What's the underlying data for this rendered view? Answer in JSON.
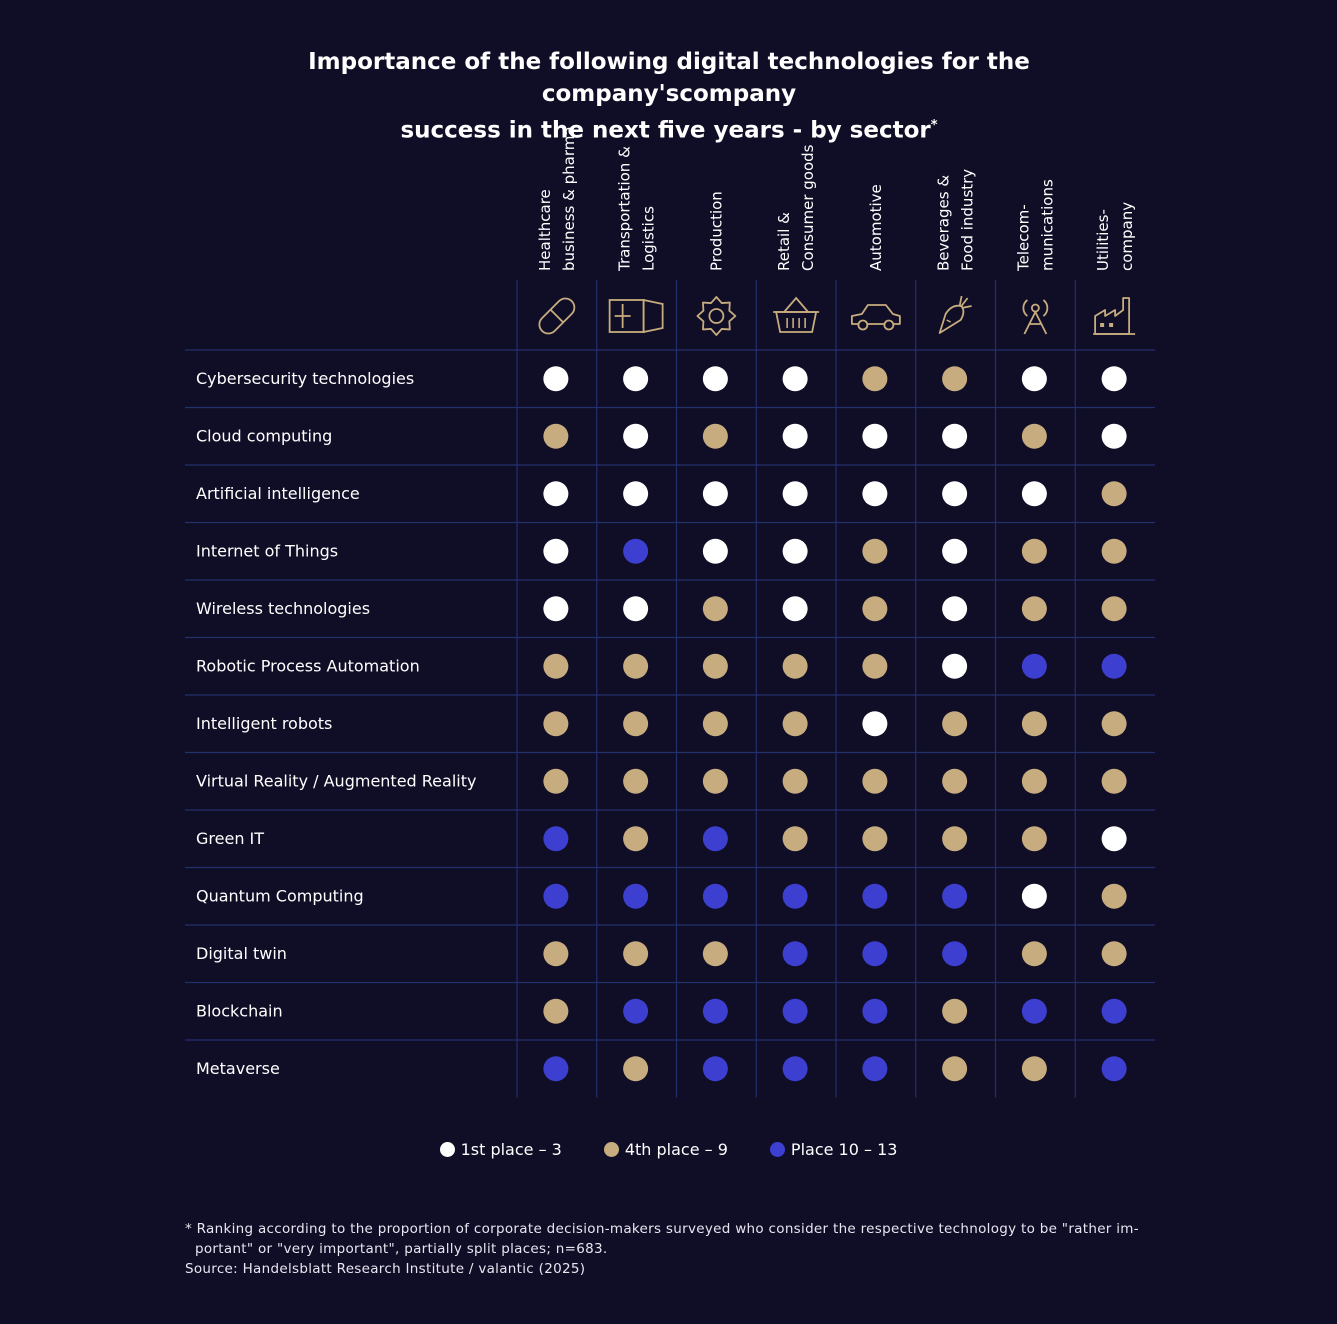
{
  "title": {
    "line1": "Importance of the following digital technologies for the company'scompany",
    "line2": "success in the next five years - by sector",
    "mark": "*"
  },
  "colors": {
    "background": "#100d26",
    "top": "#ffffff",
    "mid": "#c6ac7e",
    "low": "#3d3fd0",
    "gridline": "#23306e"
  },
  "chart_data": {
    "type": "table",
    "sectors": [
      {
        "name": "Healthcare business & pharma",
        "line1": "Healthcare",
        "line2": "business & pharma",
        "icon": "pill-icon"
      },
      {
        "name": "Transportation & Logistics",
        "line1": "Transportation &",
        "line2": "Logistics",
        "icon": "truck-icon"
      },
      {
        "name": "Production",
        "line1": "Production",
        "line2": "",
        "icon": "gear-icon"
      },
      {
        "name": "Retail & Consumer goods",
        "line1": "Retail &",
        "line2": "Consumer goods",
        "icon": "basket-icon"
      },
      {
        "name": "Automotive",
        "line1": "Automotive",
        "line2": "",
        "icon": "car-icon"
      },
      {
        "name": "Beverages & Food industry",
        "line1": "Beverages &",
        "line2": "Food industry",
        "icon": "carrot-icon"
      },
      {
        "name": "Telecommunications",
        "line1": "Telecom-",
        "line2": "munications",
        "icon": "antenna-icon"
      },
      {
        "name": "Utilities-company",
        "line1": "Utilities-",
        "line2": "company",
        "icon": "factory-icon"
      }
    ],
    "categories": {
      "top": "1st place – 3",
      "mid": "4th place – 9",
      "low": "Place 10 – 13"
    },
    "rows": [
      {
        "technology": "Cybersecurity technologies",
        "ranks": [
          "top",
          "top",
          "top",
          "top",
          "mid",
          "mid",
          "top",
          "top"
        ]
      },
      {
        "technology": "Cloud computing",
        "ranks": [
          "mid",
          "top",
          "mid",
          "top",
          "top",
          "top",
          "mid",
          "top"
        ]
      },
      {
        "technology": "Artificial intelligence",
        "ranks": [
          "top",
          "top",
          "top",
          "top",
          "top",
          "top",
          "top",
          "mid"
        ]
      },
      {
        "technology": "Internet of Things",
        "ranks": [
          "top",
          "low",
          "top",
          "top",
          "mid",
          "top",
          "mid",
          "mid"
        ]
      },
      {
        "technology": "Wireless technologies",
        "ranks": [
          "top",
          "top",
          "mid",
          "top",
          "mid",
          "top",
          "mid",
          "mid"
        ]
      },
      {
        "technology": "Robotic Process Automation",
        "ranks": [
          "mid",
          "mid",
          "mid",
          "mid",
          "mid",
          "top",
          "low",
          "low"
        ]
      },
      {
        "technology": "Intelligent robots",
        "ranks": [
          "mid",
          "mid",
          "mid",
          "mid",
          "top",
          "mid",
          "mid",
          "mid"
        ]
      },
      {
        "technology": "Virtual Reality / Augmented Reality",
        "ranks": [
          "mid",
          "mid",
          "mid",
          "mid",
          "mid",
          "mid",
          "mid",
          "mid"
        ]
      },
      {
        "technology": "Green IT",
        "ranks": [
          "low",
          "mid",
          "low",
          "mid",
          "mid",
          "mid",
          "mid",
          "top"
        ]
      },
      {
        "technology": "Quantum Computing",
        "ranks": [
          "low",
          "low",
          "low",
          "low",
          "low",
          "low",
          "top",
          "mid"
        ]
      },
      {
        "technology": "Digital twin",
        "ranks": [
          "mid",
          "mid",
          "mid",
          "low",
          "low",
          "low",
          "mid",
          "mid"
        ]
      },
      {
        "technology": "Blockchain",
        "ranks": [
          "mid",
          "low",
          "low",
          "low",
          "low",
          "mid",
          "low",
          "low"
        ]
      },
      {
        "technology": "Metaverse",
        "ranks": [
          "low",
          "mid",
          "low",
          "low",
          "low",
          "mid",
          "mid",
          "low"
        ]
      }
    ]
  },
  "legend": [
    {
      "key": "top",
      "label": "1st place – 3"
    },
    {
      "key": "mid",
      "label": "4th place – 9"
    },
    {
      "key": "low",
      "label": "Place 10 – 13"
    }
  ],
  "footnote": {
    "line1": "* Ranking according to the proportion of corporate decision-makers surveyed who consider the respective technology to be \"rather im-",
    "line2": "portant\" or \"very important\", partially split places; n=683.",
    "source": "Source: Handelsblatt Research Institute / valantic (2025)"
  }
}
